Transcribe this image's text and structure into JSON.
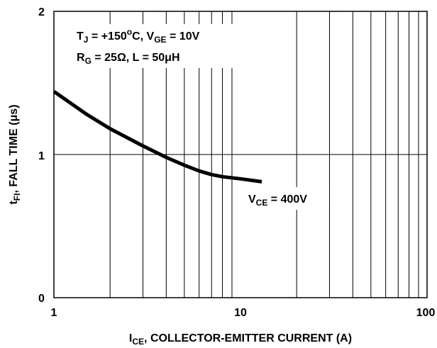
{
  "chart_data": {
    "type": "line",
    "title": "",
    "x_scale": "log",
    "xlim": [
      1,
      100
    ],
    "ylim": [
      0,
      2
    ],
    "x_ticks": [
      1,
      10,
      100
    ],
    "y_ticks": [
      0,
      1,
      2
    ],
    "x_tick_labels": [
      "1",
      "10",
      "100"
    ],
    "y_tick_labels": [
      "0",
      "1",
      "2"
    ],
    "xlabel": {
      "main": "I",
      "sub": "CE",
      "rest": ", COLLECTOR-EMITTER CURRENT (A)"
    },
    "ylabel": {
      "main": "t",
      "sub": "FI",
      "rest": ", FALL TIME (μs)"
    },
    "grid": true,
    "annotations": {
      "line1": {
        "t": "T",
        "t_sub": "J",
        "mid": " = +150",
        "deg": "o",
        "c": "C, V",
        "v_sub": "GE",
        "end": " = 10V"
      },
      "line2": {
        "r": "R",
        "r_sub": "G",
        "mid": " = 25",
        "omega": "Ω",
        "rest1": ", L = 50",
        "mu": "μ",
        "rest2": "H"
      }
    },
    "series": [
      {
        "name": {
          "main": "V",
          "sub": "CE",
          "rest": " = 400V"
        },
        "color": "#000000",
        "x": [
          1,
          1.5,
          2,
          3,
          4,
          5,
          6,
          7,
          8,
          10,
          13
        ],
        "y": [
          1.44,
          1.28,
          1.18,
          1.06,
          0.98,
          0.925,
          0.885,
          0.86,
          0.845,
          0.83,
          0.81
        ]
      }
    ]
  }
}
